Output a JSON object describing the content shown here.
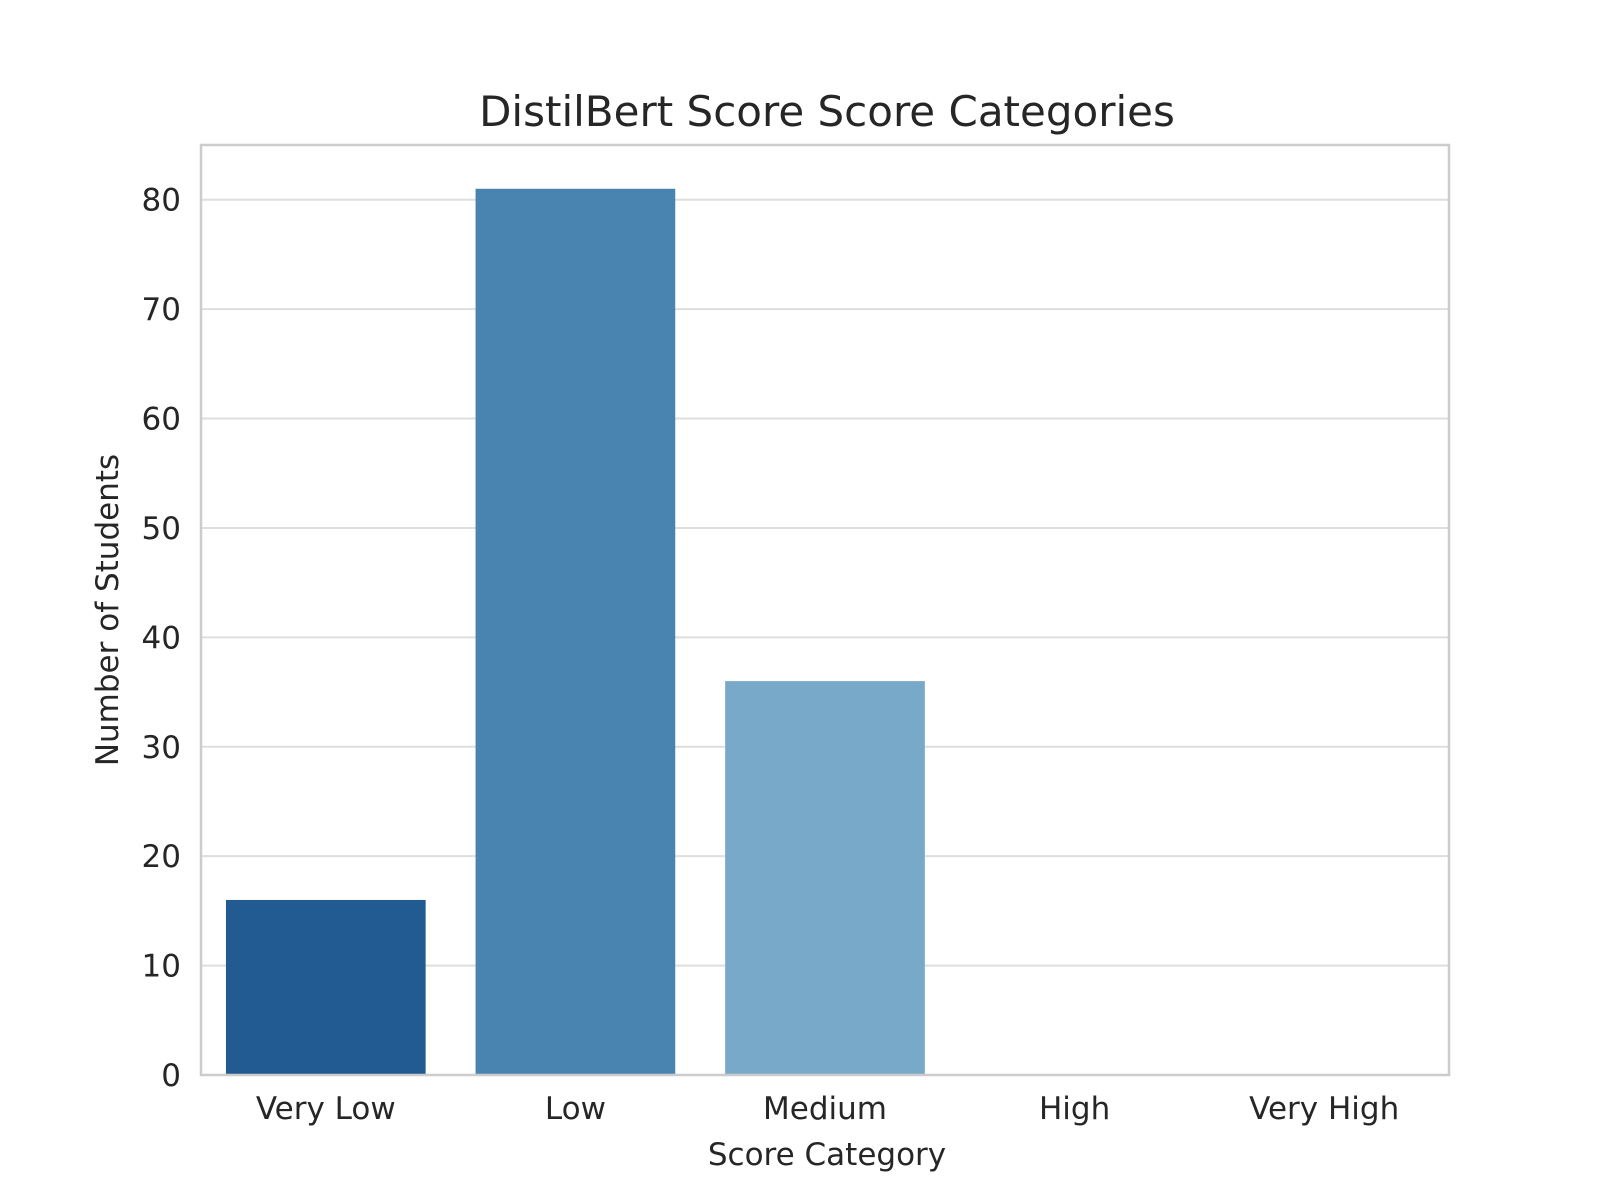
{
  "chart_data": {
    "type": "bar",
    "title": "DistilBert Score Score Categories",
    "xlabel": "Score Category",
    "ylabel": "Number of Students",
    "categories": [
      "Very Low",
      "Low",
      "Medium",
      "High",
      "Very High"
    ],
    "values": [
      16,
      81,
      36,
      0,
      0
    ],
    "colors": [
      "#225b91",
      "#4984b0",
      "#79a9c8",
      "#b6d1e6",
      "#d9e7f4"
    ],
    "ylim": [
      0,
      85
    ],
    "yticks": [
      0,
      10,
      20,
      30,
      40,
      50,
      60,
      70,
      80
    ],
    "grid": true,
    "legend": "none"
  }
}
